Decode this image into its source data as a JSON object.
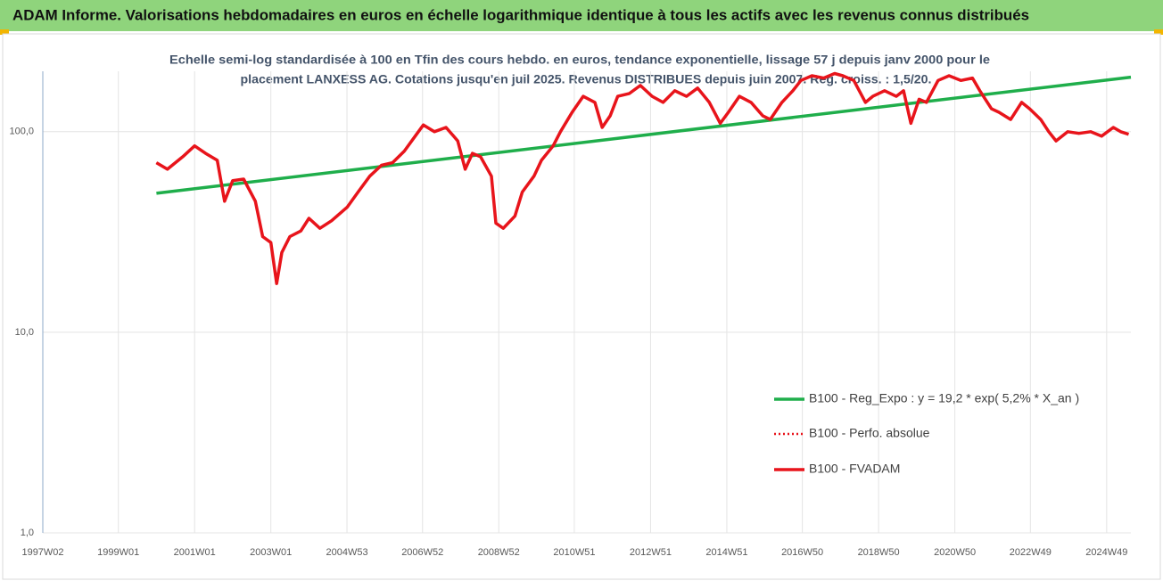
{
  "chart_data": {
    "type": "line",
    "title": "ADAM Informe. Valorisations hebdomadaires en euros en échelle logarithmique identique à tous les actifs avec les revenus connus distribués",
    "subtitle": [
      "Echelle semi-log standardisée à 100 en Tfin des cours hebdo. en euros, tendance exponentielle, lissage 57 j depuis janv 2000 pour le",
      "placement LANXESS AG. Cotations jusqu'en juil 2025. Revenus DISTRIBUES depuis juin 2007. Reg. croiss. : 1,5/20."
    ],
    "log_scale": true,
    "grid": true,
    "legend_position": "right",
    "xlim": [
      "1997W02",
      "2025W30"
    ],
    "xticks": [
      "1997W02",
      "1999W01",
      "2001W01",
      "2003W01",
      "2004W53",
      "2006W52",
      "2008W52",
      "2010W51",
      "2012W51",
      "2014W51",
      "2016W50",
      "2018W50",
      "2020W50",
      "2022W49",
      "2024W49"
    ],
    "ylim": [
      1,
      200
    ],
    "yticks": [
      {
        "value": 1,
        "label": "1,0"
      },
      {
        "value": 10,
        "label": "10,0"
      },
      {
        "value": 100,
        "label": "100,0"
      }
    ],
    "series": [
      {
        "name": "B100 - Reg_Expo : y = 19,2 * exp( 5,2% *  X_an )",
        "color": "#1fae4b",
        "style": "solid",
        "x": [
          "2000W01",
          "2025W30"
        ],
        "values": [
          49.3,
          187
        ]
      },
      {
        "name": "B100 - Perfo. absolue",
        "color": "#e8141b",
        "style": "dotted",
        "x": [
          "2000W01",
          "2000W16",
          "2000W37",
          "2001W01",
          "2001W16",
          "2001W32",
          "2001W42",
          "2002W01",
          "2002W16",
          "2002W32",
          "2002W42",
          "2003W01",
          "2003W09",
          "2003W16",
          "2003W27",
          "2003W42",
          "2004W01",
          "2004W16",
          "2004W32",
          "2005W01",
          "2005W16",
          "2005W32",
          "2005W48",
          "2006W11",
          "2006W27",
          "2006W42",
          "2007W01",
          "2007W16",
          "2007W32",
          "2007W48",
          "2008W06",
          "2008W16",
          "2008W27",
          "2008W42",
          "2008W48",
          "2009W06",
          "2009W22",
          "2009W32",
          "2009W48",
          "2010W06",
          "2010W22",
          "2010W32",
          "2010W48",
          "2011W11",
          "2011W27",
          "2011W37",
          "2011W48",
          "2012W06",
          "2012W22",
          "2012W37",
          "2013W01",
          "2013W16",
          "2013W32",
          "2013W48",
          "2014W11",
          "2014W27",
          "2014W42",
          "2015W01",
          "2015W16",
          "2015W32",
          "2015W48",
          "2016W06",
          "2016W22",
          "2016W37",
          "2016W48",
          "2017W11",
          "2017W27",
          "2017W42",
          "2018W01",
          "2018W16",
          "2018W32",
          "2018W42",
          "2019W06",
          "2019W22",
          "2019W32",
          "2019W42",
          "2020W01",
          "2020W11",
          "2020W27",
          "2020W42",
          "2021W06",
          "2021W22",
          "2021W32",
          "2021W48",
          "2022W06",
          "2022W22",
          "2022W37",
          "2022W48",
          "2023W11",
          "2023W22",
          "2023W32",
          "2023W48",
          "2024W11",
          "2024W27",
          "2024W42",
          "2025W06",
          "2025W16",
          "2025W27"
        ],
        "values": [
          70,
          65,
          75,
          85,
          78,
          72,
          45,
          57,
          58,
          45,
          30,
          28,
          17.5,
          25,
          30,
          32,
          37,
          33,
          36,
          42,
          50,
          60,
          68,
          70,
          80,
          95,
          108,
          100,
          105,
          90,
          65,
          78,
          75,
          60,
          35,
          33,
          38,
          50,
          60,
          72,
          85,
          100,
          125,
          150,
          140,
          105,
          120,
          150,
          155,
          170,
          150,
          140,
          160,
          150,
          165,
          140,
          110,
          125,
          150,
          140,
          120,
          115,
          140,
          160,
          180,
          190,
          185,
          195,
          190,
          180,
          140,
          150,
          160,
          150,
          160,
          110,
          145,
          140,
          180,
          190,
          180,
          185,
          160,
          130,
          125,
          115,
          140,
          130,
          115,
          100,
          90,
          100,
          98,
          100,
          95,
          105,
          100,
          97
        ]
      },
      {
        "name": "B100 - FVADAM",
        "color": "#e8141b",
        "style": "solid",
        "x": [
          "2000W01",
          "2000W16",
          "2000W37",
          "2001W01",
          "2001W16",
          "2001W32",
          "2001W42",
          "2002W01",
          "2002W16",
          "2002W32",
          "2002W42",
          "2003W01",
          "2003W09",
          "2003W16",
          "2003W27",
          "2003W42",
          "2004W01",
          "2004W16",
          "2004W32",
          "2005W01",
          "2005W16",
          "2005W32",
          "2005W48",
          "2006W11",
          "2006W27",
          "2006W42",
          "2007W01",
          "2007W16",
          "2007W32",
          "2007W48",
          "2008W06",
          "2008W16",
          "2008W27",
          "2008W42",
          "2008W48",
          "2009W06",
          "2009W22",
          "2009W32",
          "2009W48",
          "2010W06",
          "2010W22",
          "2010W32",
          "2010W48",
          "2011W11",
          "2011W27",
          "2011W37",
          "2011W48",
          "2012W06",
          "2012W22",
          "2012W37",
          "2013W01",
          "2013W16",
          "2013W32",
          "2013W48",
          "2014W11",
          "2014W27",
          "2014W42",
          "2015W01",
          "2015W16",
          "2015W32",
          "2015W48",
          "2016W06",
          "2016W22",
          "2016W37",
          "2016W48",
          "2017W11",
          "2017W27",
          "2017W42",
          "2018W01",
          "2018W16",
          "2018W32",
          "2018W42",
          "2019W06",
          "2019W22",
          "2019W32",
          "2019W42",
          "2020W01",
          "2020W11",
          "2020W27",
          "2020W42",
          "2021W06",
          "2021W22",
          "2021W32",
          "2021W48",
          "2022W06",
          "2022W22",
          "2022W37",
          "2022W48",
          "2023W11",
          "2023W22",
          "2023W32",
          "2023W48",
          "2024W11",
          "2024W27",
          "2024W42",
          "2025W06",
          "2025W16",
          "2025W27"
        ],
        "values": [
          70,
          65,
          75,
          85,
          78,
          72,
          45,
          57,
          58,
          45,
          30,
          28,
          17.5,
          25,
          30,
          32,
          37,
          33,
          36,
          42,
          50,
          60,
          68,
          70,
          80,
          95,
          108,
          100,
          105,
          90,
          65,
          78,
          75,
          60,
          35,
          33,
          38,
          50,
          60,
          72,
          85,
          100,
          125,
          150,
          140,
          105,
          120,
          150,
          155,
          170,
          150,
          140,
          160,
          150,
          165,
          140,
          110,
          125,
          150,
          140,
          120,
          115,
          140,
          160,
          180,
          190,
          185,
          195,
          190,
          180,
          140,
          150,
          160,
          150,
          160,
          110,
          145,
          140,
          180,
          190,
          180,
          185,
          160,
          130,
          125,
          115,
          140,
          130,
          115,
          100,
          90,
          100,
          98,
          100,
          95,
          105,
          100,
          97
        ]
      }
    ]
  }
}
